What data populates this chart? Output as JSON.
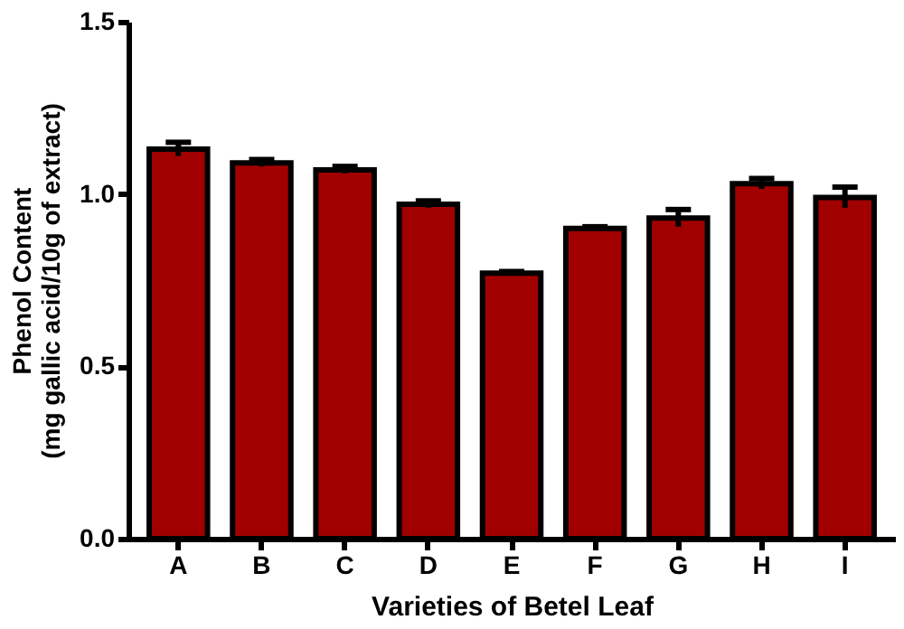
{
  "chart_data": {
    "type": "bar",
    "xlabel": "Varieties of Betel Leaf",
    "ylabel": "Phenol Content\n(mg gallic acid/10g of extract)",
    "categories": [
      "A",
      "B",
      "C",
      "D",
      "E",
      "F",
      "G",
      "H",
      "I"
    ],
    "values": [
      1.13,
      1.09,
      1.07,
      0.97,
      0.77,
      0.9,
      0.93,
      1.03,
      0.99
    ],
    "errors": [
      0.02,
      0.01,
      0.01,
      0.01,
      0.005,
      0.005,
      0.025,
      0.015,
      0.03
    ],
    "color": "#a00000",
    "ylim": [
      0,
      1.5
    ],
    "yticks": [
      {
        "value": 0,
        "label": "0.0"
      },
      {
        "value": 0.5,
        "label": "0.5"
      },
      {
        "value": 1,
        "label": "1.0"
      },
      {
        "value": 1.5,
        "label": "1.5"
      }
    ],
    "grid": false
  }
}
